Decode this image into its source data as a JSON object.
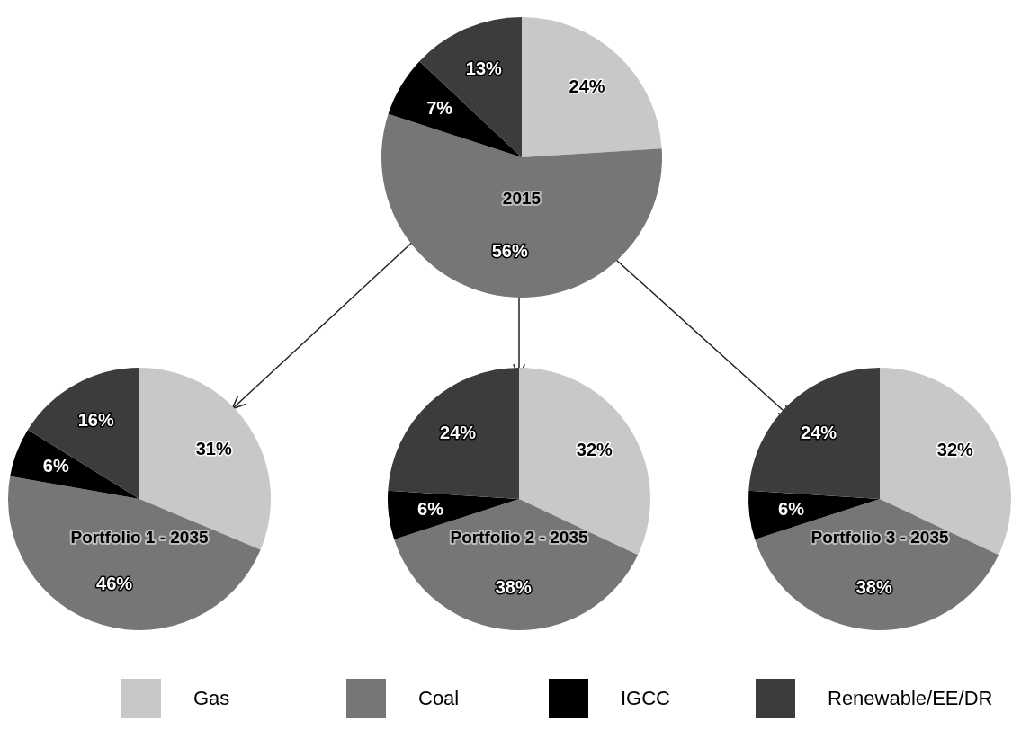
{
  "chart_data": [
    {
      "type": "pie",
      "title": "2015",
      "categories": [
        "Gas",
        "Coal",
        "IGCC",
        "Renewable/EE/DR"
      ],
      "values": [
        24,
        56,
        7,
        13
      ],
      "value_labels": [
        "24%",
        "56%",
        "7%",
        "13%"
      ],
      "colors": [
        "#c8c8c8",
        "#767676",
        "#000000",
        "#3c3c3c"
      ],
      "legend": "bottom"
    },
    {
      "type": "pie",
      "title": "Portfolio 1 - 2035",
      "values": [
        31,
        46,
        6,
        16
      ],
      "value_labels": [
        "31%",
        "46%",
        "6%",
        "16%"
      ],
      "colors": [
        "#c8c8c8",
        "#767676",
        "#000000",
        "#3c3c3c"
      ]
    },
    {
      "type": "pie",
      "title": "Portfolio 2 - 2035",
      "values": [
        32,
        38,
        6,
        24
      ],
      "value_labels": [
        "32%",
        "38%",
        "6%",
        "24%"
      ],
      "colors": [
        "#c8c8c8",
        "#767676",
        "#000000",
        "#3c3c3c"
      ]
    },
    {
      "type": "pie",
      "title": "Portfolio 3 - 2035",
      "values": [
        32,
        38,
        6,
        24
      ],
      "value_labels": [
        "32%",
        "38%",
        "6%",
        "24%"
      ],
      "colors": [
        "#c8c8c8",
        "#767676",
        "#000000",
        "#3c3c3c"
      ]
    }
  ]
}
